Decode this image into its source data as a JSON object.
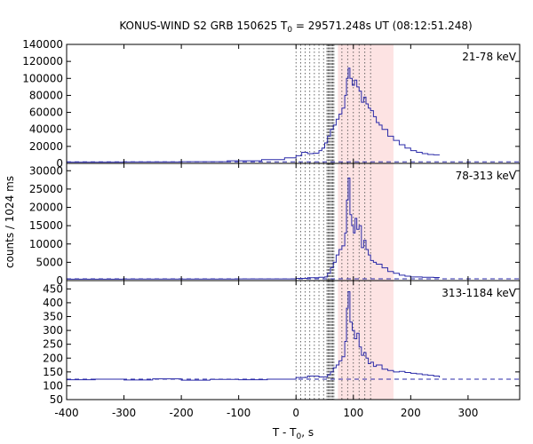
{
  "chart_data": {
    "type": "line",
    "title": {
      "prefix": "KONUS-WIND S2 GRB 150625 T",
      "subscript": "0",
      "suffix": " = 29571.248s UT (08:12:51.248)"
    },
    "xlabel": {
      "prefix": "T - T",
      "subscript": "0",
      "suffix": ", s"
    },
    "ylabel": "counts / 1024 ms",
    "xlim": [
      -400,
      390
    ],
    "xticks": [
      -400,
      -300,
      -200,
      -100,
      0,
      100,
      200,
      300
    ],
    "xtick_labels": [
      "-400",
      "-300",
      "-200",
      "-100",
      "0",
      "100",
      "200",
      "300"
    ],
    "colors": {
      "curve": "#2a2aa8",
      "background_line": "#2a2aa8",
      "highlight": "#fde3e3",
      "dotted_lines": "#444444",
      "dense_lines": "#555555"
    },
    "highlight_interval": [
      73,
      170
    ],
    "dotted_marker_times": [
      0,
      8,
      16,
      24,
      32,
      40,
      48,
      80,
      90,
      100,
      110,
      120,
      130
    ],
    "dense_marker_range": [
      54,
      66
    ],
    "panels": [
      {
        "label": "21-78 keV",
        "ylim": [
          0,
          140000
        ],
        "yticks": [
          0,
          20000,
          40000,
          60000,
          80000,
          100000,
          120000,
          140000
        ],
        "ytick_labels": [
          "0",
          "20000",
          "40000",
          "60000",
          "80000",
          "100000",
          "120000",
          "140000"
        ],
        "background": 1800,
        "pre_burst_level": 1500,
        "light_curve": [
          [
            -400,
            1500
          ],
          [
            -300,
            1700
          ],
          [
            -200,
            2000
          ],
          [
            -120,
            3000
          ],
          [
            -60,
            4500
          ],
          [
            -20,
            6500
          ],
          [
            0,
            9000
          ],
          [
            10,
            13000
          ],
          [
            20,
            11500
          ],
          [
            30,
            12000
          ],
          [
            40,
            15000
          ],
          [
            45,
            18000
          ],
          [
            50,
            24000
          ],
          [
            55,
            32000
          ],
          [
            60,
            40000
          ],
          [
            65,
            45000
          ],
          [
            70,
            52000
          ],
          [
            75,
            58000
          ],
          [
            80,
            65000
          ],
          [
            85,
            80000
          ],
          [
            88,
            100000
          ],
          [
            91,
            112000
          ],
          [
            94,
            100000
          ],
          [
            98,
            92000
          ],
          [
            102,
            98000
          ],
          [
            106,
            90000
          ],
          [
            110,
            85000
          ],
          [
            114,
            72000
          ],
          [
            118,
            78000
          ],
          [
            122,
            70000
          ],
          [
            126,
            65000
          ],
          [
            130,
            62000
          ],
          [
            135,
            55000
          ],
          [
            140,
            48000
          ],
          [
            145,
            45000
          ],
          [
            150,
            40000
          ],
          [
            160,
            32000
          ],
          [
            170,
            27000
          ],
          [
            180,
            22000
          ],
          [
            190,
            18000
          ],
          [
            200,
            15000
          ],
          [
            210,
            13000
          ],
          [
            220,
            11500
          ],
          [
            230,
            10500
          ],
          [
            240,
            10000
          ],
          [
            250,
            9800
          ]
        ]
      },
      {
        "label": "78-313 keV",
        "ylim": [
          0,
          32000
        ],
        "yticks": [
          0,
          5000,
          10000,
          15000,
          20000,
          25000,
          30000
        ],
        "ytick_labels": [
          "0",
          "5000",
          "10000",
          "15000",
          "20000",
          "25000",
          "30000"
        ],
        "background": 500,
        "pre_burst_level": 400,
        "light_curve": [
          [
            -400,
            400
          ],
          [
            -300,
            420
          ],
          [
            -200,
            430
          ],
          [
            -100,
            440
          ],
          [
            0,
            600
          ],
          [
            20,
            800
          ],
          [
            40,
            900
          ],
          [
            50,
            1000
          ],
          [
            55,
            2000
          ],
          [
            60,
            3500
          ],
          [
            65,
            5000
          ],
          [
            70,
            7000
          ],
          [
            75,
            8500
          ],
          [
            80,
            9500
          ],
          [
            85,
            13000
          ],
          [
            88,
            22000
          ],
          [
            91,
            28000
          ],
          [
            94,
            18000
          ],
          [
            97,
            15000
          ],
          [
            100,
            13000
          ],
          [
            103,
            17000
          ],
          [
            106,
            14000
          ],
          [
            110,
            15000
          ],
          [
            114,
            9000
          ],
          [
            118,
            11000
          ],
          [
            122,
            8500
          ],
          [
            126,
            7000
          ],
          [
            130,
            5500
          ],
          [
            135,
            5000
          ],
          [
            140,
            4500
          ],
          [
            150,
            3500
          ],
          [
            160,
            2500
          ],
          [
            170,
            2000
          ],
          [
            180,
            1500
          ],
          [
            190,
            1200
          ],
          [
            200,
            1000
          ],
          [
            220,
            900
          ],
          [
            240,
            850
          ],
          [
            250,
            800
          ]
        ]
      },
      {
        "label": "313-1184 keV",
        "ylim": [
          50,
          480
        ],
        "yticks": [
          50,
          100,
          150,
          200,
          250,
          300,
          350,
          400,
          450
        ],
        "ytick_labels": [
          "50",
          "100",
          "150",
          "200",
          "250",
          "300",
          "350",
          "400",
          "450"
        ],
        "background": 124,
        "pre_burst_level": 122,
        "light_curve": [
          [
            -400,
            122
          ],
          [
            -350,
            124
          ],
          [
            -300,
            121
          ],
          [
            -250,
            125
          ],
          [
            -200,
            120
          ],
          [
            -150,
            123
          ],
          [
            -100,
            122
          ],
          [
            -50,
            124
          ],
          [
            0,
            130
          ],
          [
            20,
            135
          ],
          [
            40,
            132
          ],
          [
            55,
            140
          ],
          [
            60,
            150
          ],
          [
            65,
            165
          ],
          [
            70,
            175
          ],
          [
            75,
            190
          ],
          [
            80,
            205
          ],
          [
            85,
            260
          ],
          [
            88,
            380
          ],
          [
            91,
            440
          ],
          [
            94,
            330
          ],
          [
            98,
            300
          ],
          [
            102,
            270
          ],
          [
            106,
            290
          ],
          [
            110,
            240
          ],
          [
            114,
            210
          ],
          [
            118,
            220
          ],
          [
            122,
            200
          ],
          [
            126,
            180
          ],
          [
            130,
            185
          ],
          [
            135,
            170
          ],
          [
            140,
            175
          ],
          [
            150,
            160
          ],
          [
            160,
            155
          ],
          [
            170,
            150
          ],
          [
            180,
            152
          ],
          [
            190,
            148
          ],
          [
            200,
            145
          ],
          [
            210,
            143
          ],
          [
            220,
            140
          ],
          [
            230,
            138
          ],
          [
            240,
            135
          ],
          [
            250,
            130
          ]
        ]
      }
    ]
  }
}
